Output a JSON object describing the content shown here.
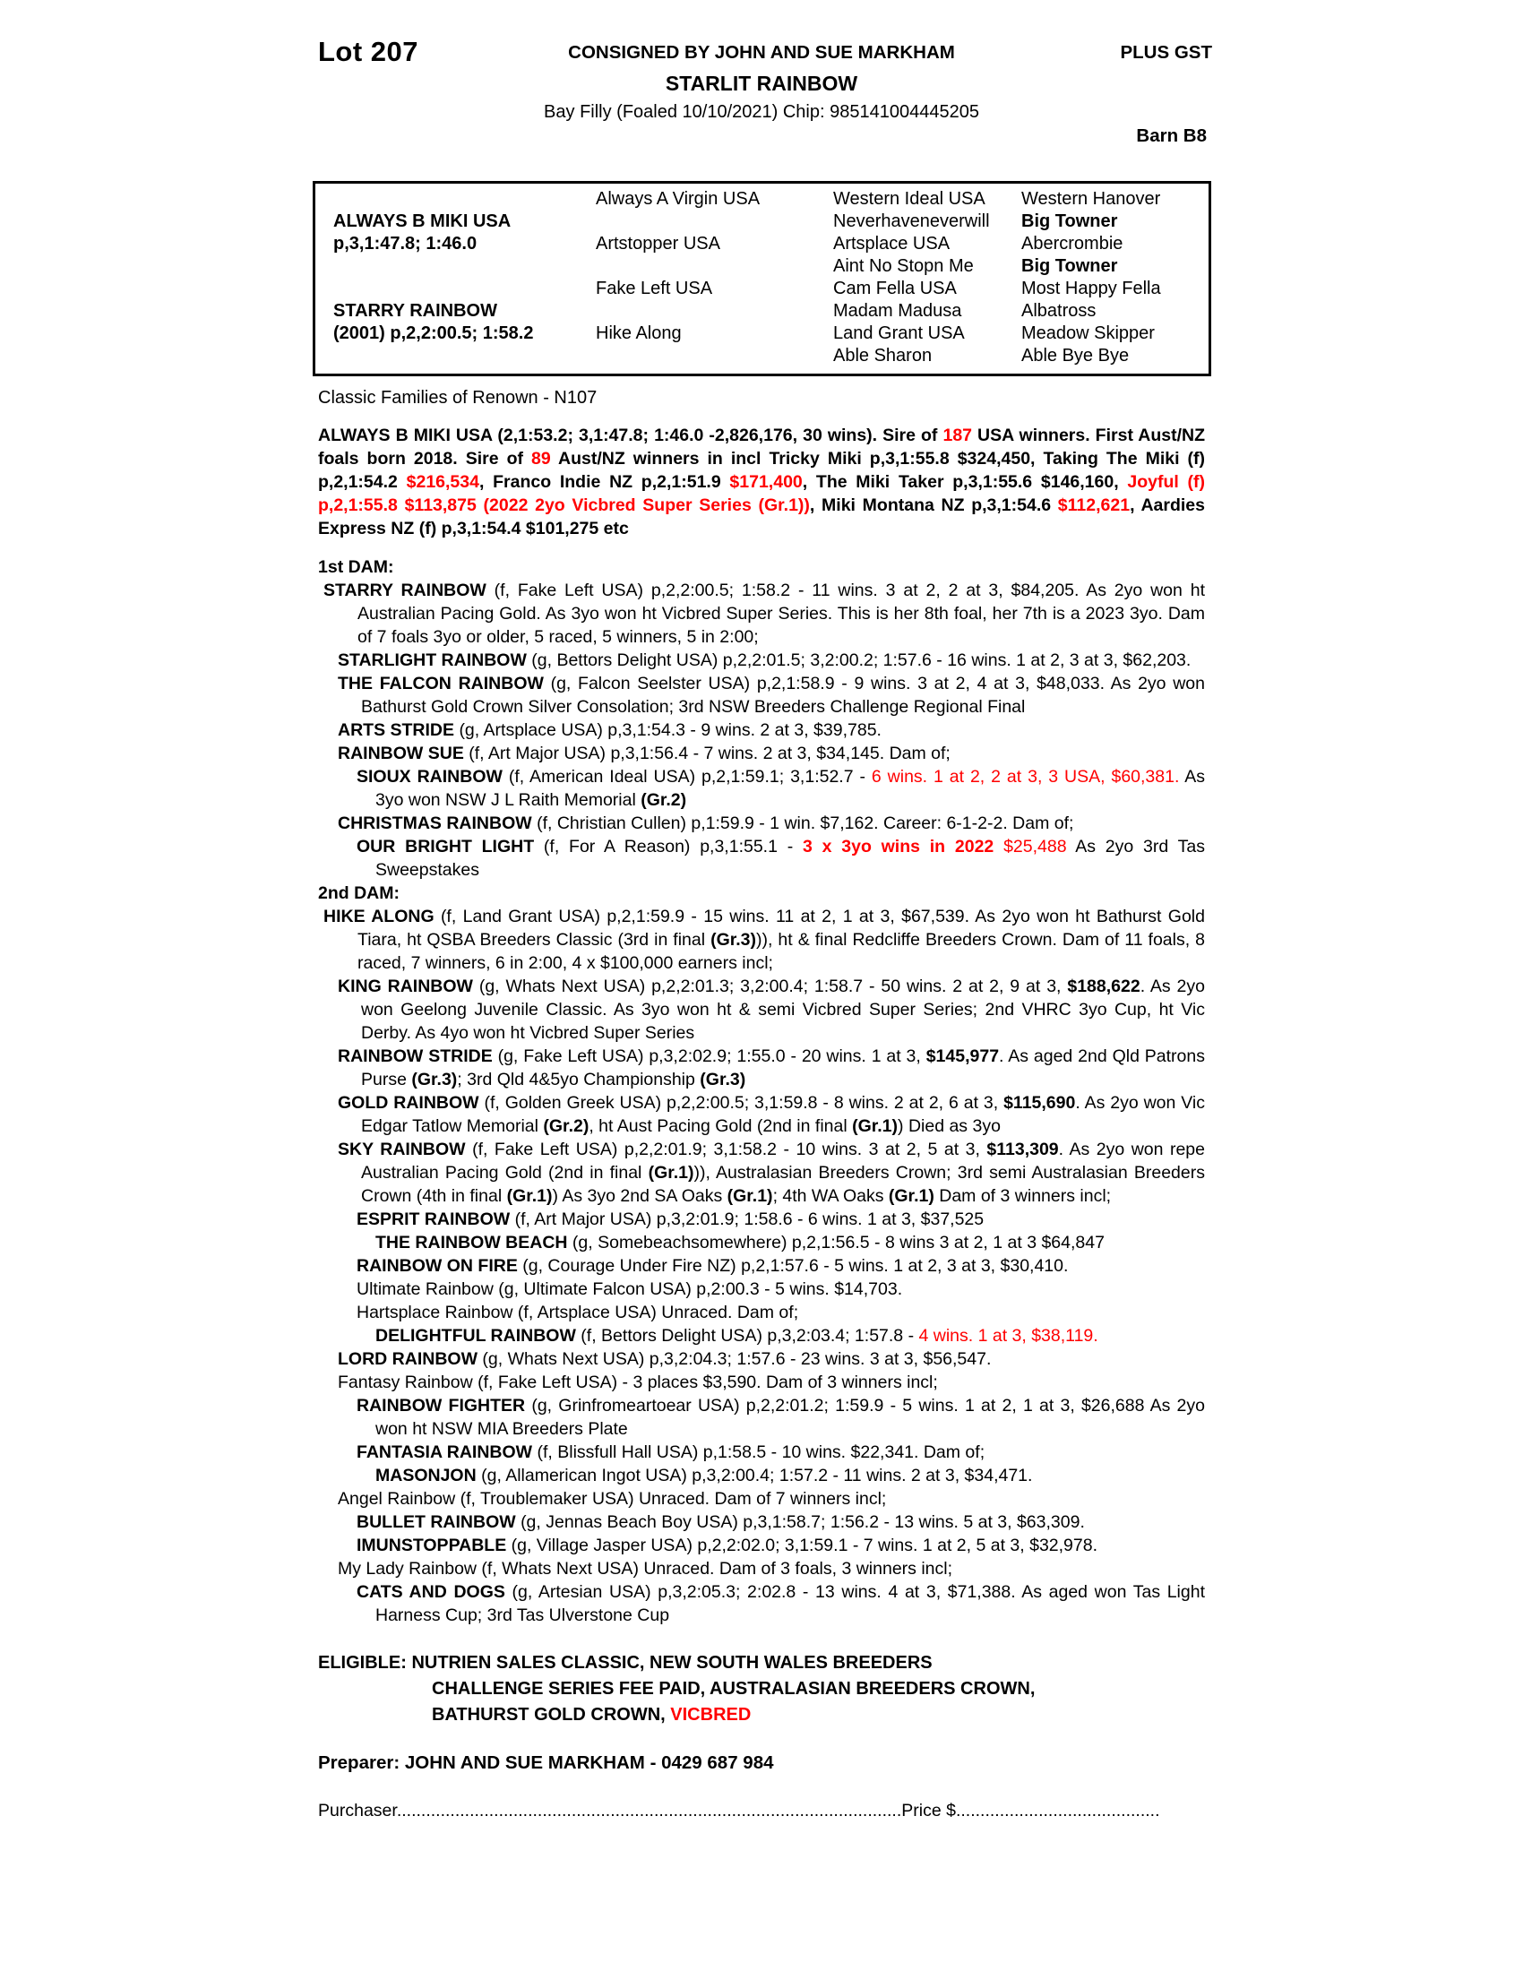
{
  "colors": {
    "accent_red": "#ff0000"
  },
  "header": {
    "lot": "Lot 207",
    "consignor": "CONSIGNED BY JOHN AND SUE MARKHAM",
    "gst": "PLUS GST",
    "horse_name": "STARLIT RAINBOW",
    "description": "Bay Filly (Foaled 10/10/2021) Chip: 985141004445205",
    "barn": "Barn B8"
  },
  "pedigree_table": {
    "cells": [
      {
        "r": 2,
        "c": 1,
        "t": "ALWAYS B MIKI USA",
        "b": true
      },
      {
        "r": 3,
        "c": 1,
        "t": "p,3,1:47.8; 1:46.0",
        "b": true
      },
      {
        "r": 6,
        "c": 1,
        "t": "STARRY RAINBOW",
        "b": true
      },
      {
        "r": 7,
        "c": 1,
        "t": "(2001) p,2,2:00.5; 1:58.2",
        "b": true
      },
      {
        "r": 1,
        "c": 2,
        "t": "Always A Virgin USA"
      },
      {
        "r": 3,
        "c": 2,
        "t": "Artstopper USA"
      },
      {
        "r": 5,
        "c": 2,
        "t": "Fake Left USA"
      },
      {
        "r": 7,
        "c": 2,
        "t": "Hike Along"
      },
      {
        "r": 1,
        "c": 3,
        "t": "Western Ideal USA"
      },
      {
        "r": 2,
        "c": 3,
        "t": "Neverhaveneverwill"
      },
      {
        "r": 3,
        "c": 3,
        "t": "Artsplace USA"
      },
      {
        "r": 4,
        "c": 3,
        "t": "Aint No Stopn Me"
      },
      {
        "r": 5,
        "c": 3,
        "t": "Cam Fella USA"
      },
      {
        "r": 6,
        "c": 3,
        "t": "Madam Madusa"
      },
      {
        "r": 7,
        "c": 3,
        "t": "Land Grant USA"
      },
      {
        "r": 8,
        "c": 3,
        "t": "Able Sharon"
      },
      {
        "r": 1,
        "c": 4,
        "t": "Western Hanover"
      },
      {
        "r": 2,
        "c": 4,
        "t": "Big Towner",
        "b": true
      },
      {
        "r": 3,
        "c": 4,
        "t": "Abercrombie"
      },
      {
        "r": 4,
        "c": 4,
        "t": "Big Towner",
        "b": true
      },
      {
        "r": 5,
        "c": 4,
        "t": "Most Happy Fella"
      },
      {
        "r": 6,
        "c": 4,
        "t": "Albatross"
      },
      {
        "r": 7,
        "c": 4,
        "t": "Meadow Skipper"
      },
      {
        "r": 8,
        "c": 4,
        "t": "Able Bye Bye"
      }
    ]
  },
  "family_line": "Classic Families of Renown - N107",
  "sire_paragraph": [
    {
      "t": "ALWAYS B MIKI USA (2,1:53.2; 3,1:47.8; 1:46.0 -2,826,176, 30 wins). Sire of "
    },
    {
      "t": "187",
      "r": true
    },
    {
      "t": " USA winners. First Aust/NZ foals born 2018. Sire of "
    },
    {
      "t": "89",
      "r": true
    },
    {
      "t": " Aust/NZ winners in incl Tricky Miki p,3,1:55.8 $324,450, Taking The Miki (f) p,2,1:54.2 "
    },
    {
      "t": "$216,534",
      "r": true
    },
    {
      "t": ", Franco Indie NZ p,2,1:51.9 "
    },
    {
      "t": "$171,400",
      "r": true
    },
    {
      "t": ", The Miki Taker p,3,1:55.6 $146,160, "
    },
    {
      "t": "Joyful (f) p,2,1:55.8 $113,875 (2022 2yo Vicbred Super Series (Gr.1))",
      "r": true
    },
    {
      "t": ", Miki Montana NZ p,3,1:54.6 "
    },
    {
      "t": "$112,621",
      "r": true
    },
    {
      "t": ", Aardies Express NZ (f) p,3,1:54.4 $101,275 etc"
    }
  ],
  "dam_sections": [
    {
      "heading": "1st DAM:",
      "records": [
        {
          "level": 0,
          "segments": [
            {
              "t": "STARRY RAINBOW ",
              "b": true
            },
            {
              "t": "(f, Fake Left USA) p,2,2:00.5; 1:58.2 - 11 wins. 3 at 2, 2 at 3, $84,205. As 2yo won ht Australian Pacing Gold. As 3yo won ht Vicbred Super Series. This is her 8th foal, her 7th is a 2023 3yo. Dam of 7 foals 3yo or older, 5 raced, 5 winners, 5 in 2:00;"
            }
          ]
        },
        {
          "level": 1,
          "segments": [
            {
              "t": "STARLIGHT RAINBOW ",
              "b": true
            },
            {
              "t": "(g, Bettors Delight USA) p,2,2:01.5; 3,2:00.2; 1:57.6 - 16 wins. 1 at 2, 3 at 3, $62,203."
            }
          ]
        },
        {
          "level": 1,
          "segments": [
            {
              "t": "THE FALCON RAINBOW ",
              "b": true
            },
            {
              "t": "(g, Falcon Seelster USA) p,2,1:58.9 - 9 wins. 3 at 2, 4 at 3, $48,033. As 2yo won Bathurst Gold Crown Silver Consolation; 3rd NSW Breeders Challenge Regional Final"
            }
          ]
        },
        {
          "level": 1,
          "segments": [
            {
              "t": "ARTS STRIDE ",
              "b": true
            },
            {
              "t": "(g, Artsplace USA) p,3,1:54.3 - 9 wins. 2 at 3, $39,785."
            }
          ]
        },
        {
          "level": 1,
          "segments": [
            {
              "t": "RAINBOW SUE ",
              "b": true
            },
            {
              "t": "(f, Art Major USA) p,3,1:56.4 - 7 wins. 2 at 3, $34,145. Dam of;"
            }
          ]
        },
        {
          "level": 2,
          "segments": [
            {
              "t": "SIOUX RAINBOW ",
              "b": true
            },
            {
              "t": "(f, American Ideal USA) p,2,1:59.1; 3,1:52.7 - "
            },
            {
              "t": "6 wins. 1 at 2, 2 at 3, 3 USA, $60,381.",
              "r": true
            },
            {
              "t": " As 3yo won NSW J L Raith Memorial "
            },
            {
              "t": "(Gr.2)",
              "b": true
            }
          ]
        },
        {
          "level": 1,
          "segments": [
            {
              "t": "CHRISTMAS RAINBOW ",
              "b": true
            },
            {
              "t": "(f, Christian Cullen) p,1:59.9 - 1 win. $7,162. Career: 6-1-2-2. Dam of;"
            }
          ]
        },
        {
          "level": 2,
          "segments": [
            {
              "t": "OUR BRIGHT LIGHT ",
              "b": true
            },
            {
              "t": "(f, For A Reason) p,3,1:55.1 - "
            },
            {
              "t": "3 x 3yo wins in 2022",
              "b": true,
              "r": true
            },
            {
              "t": " ",
              "r": true
            },
            {
              "t": "$25,488",
              "r": true
            },
            {
              "t": " As 2yo 3rd Tas Sweepstakes"
            }
          ]
        }
      ]
    },
    {
      "heading": "2nd DAM:",
      "records": [
        {
          "level": 0,
          "segments": [
            {
              "t": "HIKE ALONG ",
              "b": true
            },
            {
              "t": "(f, Land Grant USA) p,2,1:59.9 - 15 wins. 11 at 2, 1 at 3, $67,539. As 2yo won ht Bathurst Gold Tiara, ht QSBA Breeders Classic (3rd in final "
            },
            {
              "t": "(Gr.3)",
              "b": true
            },
            {
              "t": ")), ht & final Redcliffe Breeders Crown. Dam of 11 foals, 8 raced, 7 winners, 6 in 2:00, 4 x $100,000 earners incl;"
            }
          ]
        },
        {
          "level": 1,
          "segments": [
            {
              "t": "KING RAINBOW ",
              "b": true
            },
            {
              "t": "(g, Whats Next USA) p,2,2:01.3; 3,2:00.4; 1:58.7 - 50 wins. 2 at 2, 9 at 3, "
            },
            {
              "t": "$188,622",
              "b": true
            },
            {
              "t": ". As 2yo won Geelong Juvenile Classic. As 3yo won ht & semi Vicbred Super Series; 2nd VHRC 3yo Cup, ht Vic Derby. As 4yo won ht Vicbred Super Series"
            }
          ]
        },
        {
          "level": 1,
          "segments": [
            {
              "t": "RAINBOW STRIDE ",
              "b": true
            },
            {
              "t": "(g, Fake Left USA) p,3,2:02.9; 1:55.0 - 20 wins. 1 at 3, "
            },
            {
              "t": "$145,977",
              "b": true
            },
            {
              "t": ". As aged 2nd Qld Patrons Purse "
            },
            {
              "t": "(Gr.3)",
              "b": true
            },
            {
              "t": "; 3rd Qld 4&5yo Championship "
            },
            {
              "t": "(Gr.3)",
              "b": true
            }
          ]
        },
        {
          "level": 1,
          "segments": [
            {
              "t": "GOLD RAINBOW ",
              "b": true
            },
            {
              "t": "(f, Golden Greek USA) p,2,2:00.5; 3,1:59.8 - 8 wins. 2 at 2, 6 at 3, "
            },
            {
              "t": "$115,690",
              "b": true
            },
            {
              "t": ". As 2yo won Vic Edgar Tatlow Memorial "
            },
            {
              "t": "(Gr.2)",
              "b": true
            },
            {
              "t": ", ht Aust Pacing Gold (2nd in final "
            },
            {
              "t": "(Gr.1)",
              "b": true
            },
            {
              "t": ") Died as 3yo"
            }
          ]
        },
        {
          "level": 1,
          "segments": [
            {
              "t": "SKY RAINBOW ",
              "b": true
            },
            {
              "t": "(f, Fake Left USA) p,2,2:01.9; 3,1:58.2 - 10 wins. 3 at 2, 5 at 3, "
            },
            {
              "t": "$113,309",
              "b": true
            },
            {
              "t": ". As 2yo won repe Australian Pacing Gold (2nd in final "
            },
            {
              "t": "(Gr.1)",
              "b": true
            },
            {
              "t": ")), Australasian Breeders Crown; 3rd semi Australasian Breeders Crown (4th in final "
            },
            {
              "t": "(Gr.1)",
              "b": true
            },
            {
              "t": ") As 3yo 2nd SA Oaks "
            },
            {
              "t": "(Gr.1)",
              "b": true
            },
            {
              "t": "; 4th WA Oaks "
            },
            {
              "t": "(Gr.1)",
              "b": true
            },
            {
              "t": " Dam of 3 winners incl;"
            }
          ]
        },
        {
          "level": 2,
          "segments": [
            {
              "t": "ESPRIT RAINBOW ",
              "b": true
            },
            {
              "t": "(f, Art Major USA) p,3,2:01.9; 1:58.6 - 6 wins. 1 at 3, $37,525"
            }
          ]
        },
        {
          "level": 3,
          "segments": [
            {
              "t": "THE RAINBOW BEACH ",
              "b": true
            },
            {
              "t": "(g, Somebeachsomewhere) p,2,1:56.5 - 8 wins 3 at 2, 1 at 3 $64,847"
            }
          ]
        },
        {
          "level": 2,
          "segments": [
            {
              "t": "RAINBOW ON FIRE ",
              "b": true
            },
            {
              "t": "(g, Courage Under Fire NZ) p,2,1:57.6 - 5 wins. 1 at 2, 3 at 3, $30,410."
            }
          ]
        },
        {
          "level": 2,
          "segments": [
            {
              "t": "Ultimate Rainbow (g, Ultimate Falcon USA) p,2:00.3 - 5 wins. $14,703."
            }
          ]
        },
        {
          "level": 2,
          "segments": [
            {
              "t": "Hartsplace Rainbow (f, Artsplace USA) Unraced. Dam of;"
            }
          ]
        },
        {
          "level": 3,
          "segments": [
            {
              "t": "DELIGHTFUL RAINBOW ",
              "b": true
            },
            {
              "t": "(f, Bettors Delight USA) p,3,2:03.4; 1:57.8 - "
            },
            {
              "t": "4 wins. 1 at 3, $38,119.",
              "r": true
            }
          ]
        },
        {
          "level": 1,
          "segments": [
            {
              "t": "LORD RAINBOW ",
              "b": true
            },
            {
              "t": "(g, Whats Next USA) p,3,2:04.3; 1:57.6 - 23 wins. 3 at 3, $56,547."
            }
          ]
        },
        {
          "level": 1,
          "segments": [
            {
              "t": "Fantasy Rainbow (f, Fake Left USA) - 3 places $3,590. Dam of 3 winners incl;"
            }
          ]
        },
        {
          "level": 2,
          "segments": [
            {
              "t": "RAINBOW FIGHTER ",
              "b": true
            },
            {
              "t": "(g, Grinfromeartoear USA) p,2,2:01.2; 1:59.9 - 5 wins. 1 at 2, 1 at 3, $26,688 As 2yo won ht NSW MIA Breeders Plate"
            }
          ]
        },
        {
          "level": 2,
          "segments": [
            {
              "t": "FANTASIA RAINBOW ",
              "b": true
            },
            {
              "t": "(f, Blissfull Hall USA) p,1:58.5 - 10 wins. $22,341. Dam of;"
            }
          ]
        },
        {
          "level": 3,
          "segments": [
            {
              "t": "MASONJON ",
              "b": true
            },
            {
              "t": "(g, Allamerican Ingot USA) p,3,2:00.4; 1:57.2 - 11 wins. 2 at 3, $34,471."
            }
          ]
        },
        {
          "level": 1,
          "segments": [
            {
              "t": "Angel Rainbow (f, Troublemaker USA) Unraced. Dam of 7 winners incl;"
            }
          ]
        },
        {
          "level": 2,
          "segments": [
            {
              "t": "BULLET RAINBOW ",
              "b": true
            },
            {
              "t": "(g, Jennas Beach Boy USA) p,3,1:58.7; 1:56.2 - 13 wins. 5 at 3, $63,309."
            }
          ]
        },
        {
          "level": 2,
          "segments": [
            {
              "t": "IMUNSTOPPABLE ",
              "b": true
            },
            {
              "t": "(g, Village Jasper USA) p,2,2:02.0; 3,1:59.1 - 7 wins. 1 at 2, 5 at 3, $32,978."
            }
          ]
        },
        {
          "level": 1,
          "segments": [
            {
              "t": "My Lady Rainbow (f, Whats Next USA) Unraced. Dam of 3 foals, 3 winners incl;"
            }
          ]
        },
        {
          "level": 2,
          "segments": [
            {
              "t": "CATS AND DOGS ",
              "b": true
            },
            {
              "t": "(g, Artesian USA) p,3,2:05.3; 2:02.8 - 13 wins. 4 at 3, $71,388. As aged won Tas Light Harness Cup; 3rd Tas Ulverstone Cup"
            }
          ]
        }
      ]
    }
  ],
  "eligible_segments": [
    {
      "t": "ELIGIBLE: NUTRIEN SALES CLASSIC, NEW SOUTH WALES BREEDERS"
    },
    {
      "br": true
    },
    {
      "t": "CHALLENGE SERIES FEE PAID, AUSTRALASIAN BREEDERS CROWN,"
    },
    {
      "br": true
    },
    {
      "t": "BATHURST GOLD CROWN, "
    },
    {
      "t": "VICBRED",
      "r": true
    }
  ],
  "preparer": "Preparer: JOHN AND SUE MARKHAM - 0429 687 984",
  "purchaser": {
    "label": "Purchaser",
    "dots1": "........................................................................................................",
    "price": "Price $",
    "dots2": ".........................................."
  }
}
